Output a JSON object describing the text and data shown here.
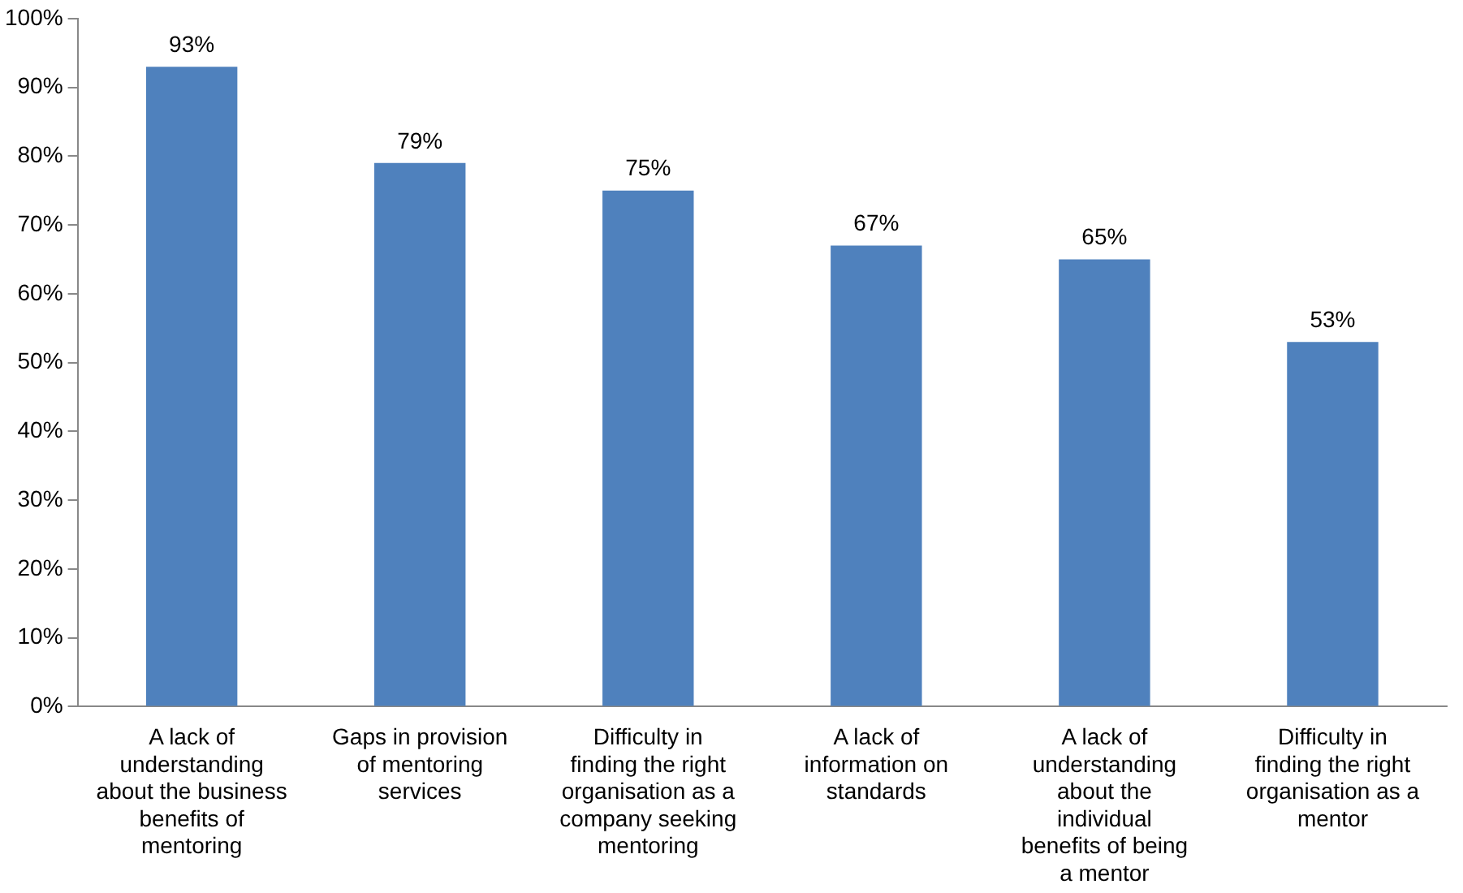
{
  "chart_data": {
    "type": "bar",
    "categories": [
      "A lack of understanding about the business benefits of mentoring",
      "Gaps in provision of mentoring services",
      "Difficulty in finding the right organisation as a company seeking mentoring",
      "A lack of information on standards",
      "A lack of understanding about the individual benefits of being a mentor",
      "Difficulty in finding the right organisation as a mentor"
    ],
    "values": [
      93,
      79,
      75,
      67,
      65,
      53
    ],
    "value_labels": [
      "93%",
      "79%",
      "75%",
      "67%",
      "65%",
      "53%"
    ],
    "color": "#4f81bd",
    "ylim": [
      0,
      100
    ],
    "yticks": [
      {
        "value": 0,
        "label": "0%"
      },
      {
        "value": 10,
        "label": "10%"
      },
      {
        "value": 20,
        "label": "20%"
      },
      {
        "value": 30,
        "label": "30%"
      },
      {
        "value": 40,
        "label": "40%"
      },
      {
        "value": 50,
        "label": "50%"
      },
      {
        "value": 60,
        "label": "60%"
      },
      {
        "value": 70,
        "label": "70%"
      },
      {
        "value": 80,
        "label": "80%"
      },
      {
        "value": 90,
        "label": "90%"
      },
      {
        "value": 100,
        "label": "100%"
      }
    ],
    "grid": false,
    "legend": false
  }
}
